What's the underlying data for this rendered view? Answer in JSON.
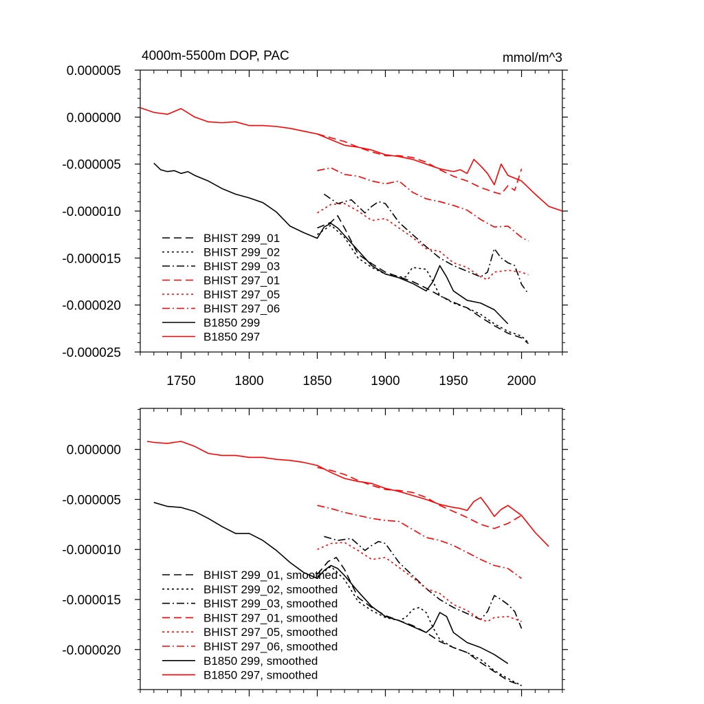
{
  "chart_data": [
    {
      "type": "line",
      "title": "4000m-5500m DOP, PAC",
      "units": "mmol/m^3",
      "xlim": [
        1720,
        2030
      ],
      "ylim": [
        -2.5e-05,
        5e-06
      ],
      "x_ticks": [
        1750,
        1800,
        1850,
        1900,
        1950,
        2000
      ],
      "x_tick_labels": [
        "1750",
        "1800",
        "1850",
        "1900",
        "1950",
        "2000"
      ],
      "y_ticks": [
        5e-06,
        0,
        -5e-06,
        -1e-05,
        -1.5e-05,
        -2e-05,
        -2.5e-05
      ],
      "y_tick_labels": [
        "0.000005",
        "0.000000",
        "-0.000005",
        "-0.000010",
        "-0.000015",
        "-0.000020",
        "-0.000025"
      ],
      "legend_position": "bottom-left",
      "series": [
        {
          "name": "BHIST 299_01",
          "color": "#000000",
          "dash": "dashed",
          "x": [
            1850,
            1860,
            1865,
            1870,
            1880,
            1890,
            1900,
            1910,
            1920,
            1930,
            1940,
            1950,
            1960,
            1970,
            1980,
            1990,
            2000,
            2005
          ],
          "y": [
            -1.18e-05,
            -1.12e-05,
            -1.05e-05,
            -1.18e-05,
            -1.46e-05,
            -1.56e-05,
            -1.65e-05,
            -1.7e-05,
            -1.75e-05,
            -1.82e-05,
            -1.9e-05,
            -1.97e-05,
            -2.03e-05,
            -2.13e-05,
            -2.22e-05,
            -2.3e-05,
            -2.35e-05,
            -2.41e-05
          ]
        },
        {
          "name": "BHIST 299_02",
          "color": "#000000",
          "dash": "dotted",
          "x": [
            1850,
            1860,
            1870,
            1880,
            1890,
            1900,
            1910,
            1915,
            1920,
            1930,
            1935,
            1940,
            1950,
            1960,
            1970,
            1980,
            1990,
            2000,
            2005
          ],
          "y": [
            -1.25e-05,
            -1.15e-05,
            -1.28e-05,
            -1.5e-05,
            -1.6e-05,
            -1.67e-05,
            -1.7e-05,
            -1.7e-05,
            -1.6e-05,
            -1.62e-05,
            -1.75e-05,
            -1.9e-05,
            -1.98e-05,
            -2.03e-05,
            -2.1e-05,
            -2.2e-05,
            -2.28e-05,
            -2.33e-05,
            -2.4e-05
          ]
        },
        {
          "name": "BHIST 299_03",
          "color": "#000000",
          "dash": "dashdot",
          "x": [
            1855,
            1865,
            1875,
            1885,
            1890,
            1895,
            1900,
            1910,
            1920,
            1930,
            1940,
            1950,
            1960,
            1970,
            1975,
            1980,
            1985,
            1990,
            1995,
            2000,
            2005
          ],
          "y": [
            -8.2e-06,
            -9.2e-06,
            -8.8e-06,
            -1.02e-05,
            -9.5e-06,
            -9e-06,
            -9.2e-06,
            -1.12e-05,
            -1.25e-05,
            -1.38e-05,
            -1.5e-05,
            -1.58e-05,
            -1.64e-05,
            -1.7e-05,
            -1.65e-05,
            -1.4e-05,
            -1.5e-05,
            -1.55e-05,
            -1.58e-05,
            -1.78e-05,
            -1.88e-05
          ]
        },
        {
          "name": "BHIST 297_01",
          "color": "#ff0000",
          "dash": "dashed",
          "x": [
            1850,
            1860,
            1870,
            1880,
            1890,
            1900,
            1910,
            1920,
            1930,
            1940,
            1950,
            1960,
            1970,
            1980,
            1985,
            1990,
            1995,
            2000
          ],
          "y": [
            -1.8e-06,
            -2.2e-06,
            -2.6e-06,
            -3.2e-06,
            -3.7e-06,
            -4.1e-06,
            -4.1e-06,
            -4.3e-06,
            -4.8e-06,
            -5.6e-06,
            -6.3e-06,
            -6.8e-06,
            -7.5e-06,
            -8e-06,
            -8.2e-06,
            -7.3e-06,
            -7.8e-06,
            -5.5e-06
          ]
        },
        {
          "name": "BHIST 297_05",
          "color": "#ff0000",
          "dash": "dotted",
          "x": [
            1850,
            1860,
            1870,
            1880,
            1890,
            1900,
            1910,
            1920,
            1930,
            1940,
            1950,
            1960,
            1970,
            1975,
            1980,
            1990,
            2000,
            2005
          ],
          "y": [
            -1.02e-05,
            -9.3e-06,
            -9.2e-06,
            -1e-05,
            -1.1e-05,
            -1.08e-05,
            -1.18e-05,
            -1.28e-05,
            -1.4e-05,
            -1.43e-05,
            -1.55e-05,
            -1.6e-05,
            -1.7e-05,
            -1.73e-05,
            -1.65e-05,
            -1.63e-05,
            -1.65e-05,
            -1.68e-05
          ]
        },
        {
          "name": "BHIST 297_06",
          "color": "#ff0000",
          "dash": "dashdot",
          "x": [
            1850,
            1860,
            1870,
            1880,
            1890,
            1900,
            1910,
            1920,
            1930,
            1940,
            1950,
            1960,
            1970,
            1980,
            1990,
            2000,
            2005
          ],
          "y": [
            -5.7e-06,
            -5.4e-06,
            -6.1e-06,
            -6.3e-06,
            -6.8e-06,
            -7.1e-06,
            -6.8e-06,
            -8e-06,
            -8.7e-06,
            -9e-06,
            -9.4e-06,
            -9.9e-06,
            -1.09e-05,
            -1.17e-05,
            -1.16e-05,
            -1.28e-05,
            -1.32e-05
          ]
        },
        {
          "name": "B1850 299",
          "color": "#000000",
          "dash": "solid",
          "x": [
            1730,
            1735,
            1740,
            1745,
            1750,
            1755,
            1760,
            1770,
            1780,
            1790,
            1800,
            1810,
            1820,
            1830,
            1840,
            1850,
            1855,
            1860,
            1865,
            1870,
            1880,
            1890,
            1900,
            1910,
            1920,
            1930,
            1935,
            1940,
            1945,
            1950,
            1960,
            1970,
            1980,
            1990
          ],
          "y": [
            -4.9e-06,
            -5.6e-06,
            -5.8e-06,
            -5.7e-06,
            -6e-06,
            -5.8e-06,
            -6.2e-06,
            -6.8e-06,
            -7.6e-06,
            -8.2e-06,
            -8.6e-06,
            -9.1e-06,
            -1.01e-05,
            -1.16e-05,
            -1.23e-05,
            -1.29e-05,
            -1.17e-05,
            -1.13e-05,
            -1.18e-05,
            -1.26e-05,
            -1.42e-05,
            -1.58e-05,
            -1.67e-05,
            -1.71e-05,
            -1.77e-05,
            -1.85e-05,
            -1.75e-05,
            -1.58e-05,
            -1.7e-05,
            -1.85e-05,
            -1.95e-05,
            -1.98e-05,
            -2.05e-05,
            -2.2e-05
          ]
        },
        {
          "name": "B1850 297",
          "color": "#ff0000",
          "dash": "solid",
          "x": [
            1720,
            1730,
            1740,
            1750,
            1760,
            1770,
            1780,
            1790,
            1800,
            1810,
            1820,
            1830,
            1840,
            1850,
            1860,
            1870,
            1880,
            1890,
            1900,
            1910,
            1920,
            1930,
            1940,
            1950,
            1955,
            1960,
            1965,
            1970,
            1975,
            1980,
            1985,
            1990,
            2000,
            2005,
            2010,
            2020,
            2030
          ],
          "y": [
            1e-06,
            5e-07,
            3e-07,
            9e-07,
            0.0,
            -5e-07,
            -6e-07,
            -5e-07,
            -9e-07,
            -9e-07,
            -1e-06,
            -1.2e-06,
            -1.5e-06,
            -1.8e-06,
            -2.4e-06,
            -3e-06,
            -3.2e-06,
            -3.5e-06,
            -4e-06,
            -4.2e-06,
            -4.5e-06,
            -5e-06,
            -5.5e-06,
            -5.8e-06,
            -5.6e-06,
            -6e-06,
            -4.5e-06,
            -5.2e-06,
            -6e-06,
            -7.2e-06,
            -5e-06,
            -6.2e-06,
            -6.8e-06,
            -7.5e-06,
            -8.2e-06,
            -9.5e-06,
            -1e-05
          ]
        }
      ]
    },
    {
      "type": "line",
      "xlim": [
        1720,
        2030
      ],
      "ylim": [
        -2.4e-05,
        4.1e-06
      ],
      "x_ticks": [
        1750,
        1800,
        1850,
        1900,
        1950,
        2000
      ],
      "y_ticks": [
        0,
        -5e-06,
        -1e-05,
        -1.5e-05,
        -2e-05
      ],
      "y_tick_labels": [
        "0.000000",
        "-0.000005",
        "-0.000010",
        "-0.000015",
        "-0.000020"
      ],
      "legend_position": "bottom-left",
      "series": [
        {
          "name": "BHIST 299_01, smoothed",
          "color": "#000000",
          "dash": "dashed",
          "x": [
            1850,
            1858,
            1864,
            1870,
            1880,
            1890,
            1900,
            1910,
            1920,
            1930,
            1940,
            1950,
            1960,
            1970,
            1980,
            1990,
            2000
          ],
          "y": [
            -1.25e-05,
            -1.12e-05,
            -1.08e-05,
            -1.2e-05,
            -1.48e-05,
            -1.58e-05,
            -1.66e-05,
            -1.71e-05,
            -1.76e-05,
            -1.83e-05,
            -1.92e-05,
            -1.98e-05,
            -2.03e-05,
            -2.13e-05,
            -2.22e-05,
            -2.31e-05,
            -2.36e-05
          ]
        },
        {
          "name": "BHIST 299_02, smoothed",
          "color": "#000000",
          "dash": "dotted",
          "x": [
            1850,
            1860,
            1870,
            1880,
            1890,
            1900,
            1910,
            1915,
            1920,
            1925,
            1930,
            1935,
            1940,
            1950,
            1960,
            1970,
            1980,
            1990,
            2000
          ],
          "y": [
            -1.27e-05,
            -1.17e-05,
            -1.3e-05,
            -1.52e-05,
            -1.61e-05,
            -1.68e-05,
            -1.71e-05,
            -1.68e-05,
            -1.6e-05,
            -1.58e-05,
            -1.63e-05,
            -1.78e-05,
            -1.9e-05,
            -1.98e-05,
            -2.03e-05,
            -2.1e-05,
            -2.21e-05,
            -2.29e-05,
            -2.36e-05
          ]
        },
        {
          "name": "BHIST 299_03, smoothed",
          "color": "#000000",
          "dash": "dashdot",
          "x": [
            1855,
            1865,
            1875,
            1885,
            1890,
            1895,
            1900,
            1910,
            1920,
            1930,
            1940,
            1950,
            1960,
            1970,
            1975,
            1980,
            1985,
            1990,
            1995,
            2000
          ],
          "y": [
            -8.7e-06,
            -9.1e-06,
            -8.9e-06,
            -1.01e-05,
            -9.6e-06,
            -9.2e-06,
            -9.4e-06,
            -1.13e-05,
            -1.26e-05,
            -1.39e-05,
            -1.5e-05,
            -1.58e-05,
            -1.64e-05,
            -1.7e-05,
            -1.62e-05,
            -1.46e-05,
            -1.5e-05,
            -1.55e-05,
            -1.62e-05,
            -1.79e-05
          ]
        },
        {
          "name": "BHIST 297_01, smoothed",
          "color": "#ff0000",
          "dash": "dashed",
          "x": [
            1850,
            1860,
            1870,
            1880,
            1890,
            1900,
            1910,
            1920,
            1930,
            1940,
            1950,
            1960,
            1970,
            1980,
            1990,
            2000
          ],
          "y": [
            -1.8e-06,
            -2.1e-06,
            -2.5e-06,
            -3.1e-06,
            -3.6e-06,
            -4e-06,
            -4.1e-06,
            -4.3e-06,
            -4.8e-06,
            -5.6e-06,
            -6.2e-06,
            -6.8e-06,
            -7.5e-06,
            -7.9e-06,
            -7.4e-06,
            -6.6e-06
          ]
        },
        {
          "name": "BHIST 297_05, smoothed",
          "color": "#ff0000",
          "dash": "dotted",
          "x": [
            1850,
            1860,
            1870,
            1880,
            1890,
            1900,
            1910,
            1920,
            1930,
            1940,
            1950,
            1960,
            1970,
            1975,
            1980,
            1990,
            2000
          ],
          "y": [
            -1e-05,
            -9.4e-06,
            -9.3e-06,
            -1.01e-05,
            -1.1e-05,
            -1.08e-05,
            -1.18e-05,
            -1.28e-05,
            -1.39e-05,
            -1.44e-05,
            -1.55e-05,
            -1.61e-05,
            -1.7e-05,
            -1.72e-05,
            -1.68e-05,
            -1.67e-05,
            -1.72e-05
          ]
        },
        {
          "name": "BHIST 297_06, smoothed",
          "color": "#ff0000",
          "dash": "dashdot",
          "x": [
            1850,
            1860,
            1870,
            1880,
            1890,
            1900,
            1910,
            1920,
            1930,
            1940,
            1950,
            1960,
            1970,
            1980,
            1990,
            2000
          ],
          "y": [
            -5.6e-06,
            -5.9e-06,
            -6.3e-06,
            -6.6e-06,
            -6.9e-06,
            -7.1e-06,
            -7.2e-06,
            -8e-06,
            -8.8e-06,
            -9.1e-06,
            -9.6e-06,
            -1.03e-05,
            -1.1e-05,
            -1.16e-05,
            -1.19e-05,
            -1.29e-05
          ]
        },
        {
          "name": "B1850 299, smoothed",
          "color": "#000000",
          "dash": "solid",
          "x": [
            1730,
            1740,
            1750,
            1760,
            1770,
            1780,
            1790,
            1800,
            1810,
            1820,
            1830,
            1840,
            1850,
            1855,
            1860,
            1865,
            1870,
            1880,
            1890,
            1900,
            1910,
            1920,
            1930,
            1935,
            1940,
            1945,
            1950,
            1960,
            1970,
            1980,
            1990
          ],
          "y": [
            -5.3e-06,
            -5.7e-06,
            -5.8e-06,
            -6.2e-06,
            -6.9e-06,
            -7.7e-06,
            -8.4e-06,
            -8.4e-06,
            -9.1e-06,
            -1.01e-05,
            -1.13e-05,
            -1.23e-05,
            -1.29e-05,
            -1.21e-05,
            -1.16e-05,
            -1.19e-05,
            -1.26e-05,
            -1.42e-05,
            -1.57e-05,
            -1.67e-05,
            -1.71e-05,
            -1.77e-05,
            -1.83e-05,
            -1.77e-05,
            -1.63e-05,
            -1.67e-05,
            -1.83e-05,
            -1.93e-05,
            -1.98e-05,
            -2.05e-05,
            -2.14e-05
          ]
        },
        {
          "name": "B1850 297, smoothed",
          "color": "#ff0000",
          "dash": "solid",
          "x": [
            1725,
            1730,
            1740,
            1750,
            1760,
            1770,
            1780,
            1790,
            1800,
            1810,
            1820,
            1830,
            1840,
            1850,
            1860,
            1870,
            1880,
            1890,
            1900,
            1910,
            1920,
            1930,
            1940,
            1950,
            1955,
            1960,
            1965,
            1970,
            1975,
            1980,
            1985,
            1990,
            1995,
            2000,
            2010,
            2020
          ],
          "y": [
            8e-07,
            7e-07,
            6e-07,
            8e-07,
            3e-07,
            -4e-07,
            -6e-07,
            -6e-07,
            -8e-07,
            -8e-07,
            -1e-06,
            -1.1e-06,
            -1.3e-06,
            -1.6e-06,
            -2.3e-06,
            -2.9e-06,
            -3.2e-06,
            -3.4e-06,
            -3.9e-06,
            -4.2e-06,
            -4.6e-06,
            -5e-06,
            -5.5e-06,
            -5.8e-06,
            -5.9e-06,
            -6.1e-06,
            -5.2e-06,
            -4.8e-06,
            -5.7e-06,
            -6.7e-06,
            -6e-06,
            -5.6e-06,
            -6.1e-06,
            -6.6e-06,
            -8.3e-06,
            -9.7e-06
          ]
        }
      ]
    }
  ]
}
